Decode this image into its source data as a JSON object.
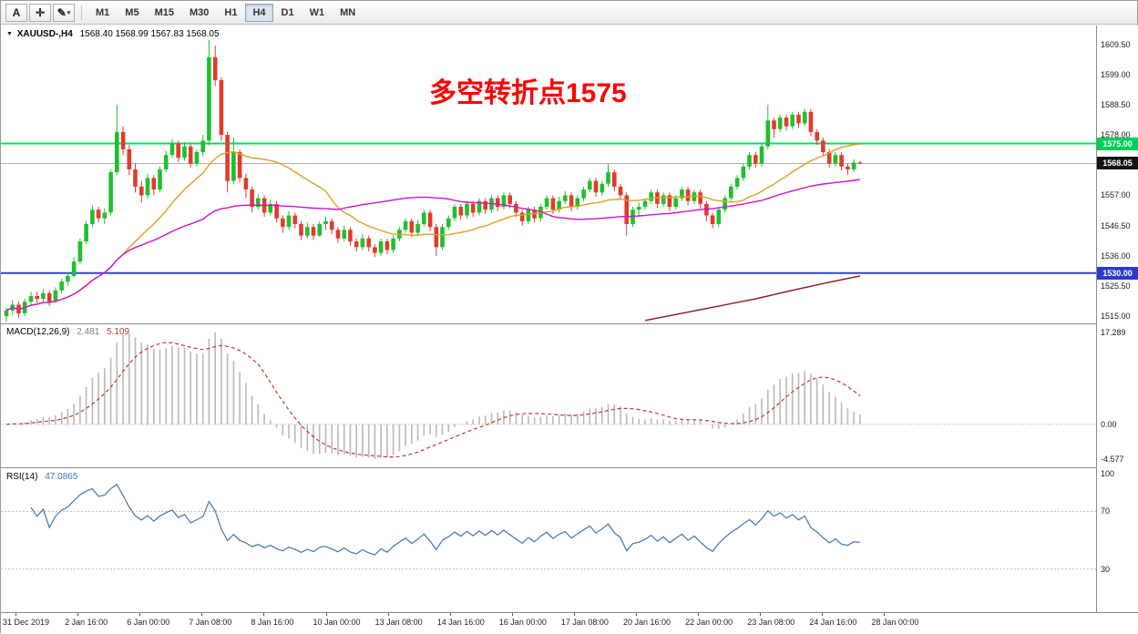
{
  "toolbar": {
    "tools": [
      {
        "id": "text-tool",
        "label": "A"
      },
      {
        "id": "crosshair-tool",
        "label": "✛"
      },
      {
        "id": "draw-tools",
        "label": "✎",
        "caret": "▾"
      }
    ],
    "timeframes": [
      "M1",
      "M5",
      "M15",
      "M30",
      "H1",
      "H4",
      "D1",
      "W1",
      "MN"
    ],
    "active_timeframe": "H4"
  },
  "chart_header": {
    "collapse_icon": "▼",
    "symbol_period": "XAUUSD-,H4",
    "ohlc": "1568.40 1568.99 1567.83 1568.05"
  },
  "annotation": {
    "text": "多空转折点1575",
    "color": "#ff0000"
  },
  "price_axis": {
    "ticks": [
      1609.5,
      1599.0,
      1588.5,
      1578.0,
      1567.5,
      1557.0,
      1546.5,
      1536.0,
      1525.5,
      1515.0
    ],
    "tags": [
      {
        "label": "1575.00",
        "price": 1575.0,
        "bg": "#00cf58",
        "fg": "#ffffff",
        "name": "resistance-price-tag"
      },
      {
        "label": "1568.05",
        "price": 1568.05,
        "bg": "#141414",
        "fg": "#ffffff",
        "name": "current-price-tag"
      },
      {
        "label": "1530.00",
        "price": 1530.0,
        "bg": "#2b3bc8",
        "fg": "#ffffff",
        "name": "support-price-tag"
      }
    ]
  },
  "time_axis": {
    "labels": [
      "31 Dec 2019",
      "2 Jan 16:00",
      "6 Jan 00:00",
      "7 Jan 08:00",
      "8 Jan 16:00",
      "10 Jan 00:00",
      "13 Jan 08:00",
      "14 Jan 16:00",
      "16 Jan 00:00",
      "17 Jan 08:00",
      "20 Jan 16:00",
      "22 Jan 00:00",
      "23 Jan 08:00",
      "24 Jan 16:00",
      "28 Jan 00:00"
    ]
  },
  "chart_data": [
    {
      "id": "price",
      "type": "candlestick",
      "symbol": "XAUUSD-",
      "timeframe": "H4",
      "ohlc_display": {
        "open": 1568.4,
        "high": 1568.99,
        "low": 1567.83,
        "close": 1568.05
      },
      "ylim": [
        1512.5,
        1616.0
      ],
      "up_color": "#1fbf2f",
      "down_color": "#e23a2e",
      "hlines": [
        {
          "price": 1575.0,
          "color": "#00e05f",
          "width": 2,
          "label": "1575.00",
          "note": "bull-bear turning point"
        },
        {
          "price": 1530.0,
          "color": "#3345cc",
          "width": 2,
          "label": "1530.00"
        },
        {
          "price": 1568.05,
          "color": "#b0b0b0",
          "width": 1,
          "label": "1568.05",
          "style": "current"
        }
      ],
      "moving_averages": [
        {
          "period": 20,
          "method": "sma",
          "color": "#dfa023"
        },
        {
          "period": 55,
          "method": "sma",
          "color": "#d012c8"
        }
      ],
      "slow_ma_points": {
        "color": "#8b1515",
        "points": [
          [
            104,
            1513.5
          ],
          [
            110,
            1516
          ],
          [
            116,
            1518.5
          ],
          [
            122,
            1521
          ],
          [
            128,
            1524
          ],
          [
            134,
            1526.8
          ],
          [
            139,
            1529
          ]
        ]
      },
      "candles": [
        [
          1515,
          1518,
          1513,
          1517
        ],
        [
          1517,
          1520.5,
          1515.5,
          1519
        ],
        [
          1519,
          1520,
          1514.5,
          1516
        ],
        [
          1516,
          1521,
          1515,
          1520
        ],
        [
          1520,
          1523.5,
          1519,
          1522
        ],
        [
          1522,
          1523.5,
          1519.5,
          1521
        ],
        [
          1521,
          1524.5,
          1520,
          1523
        ],
        [
          1523,
          1524,
          1518.5,
          1520
        ],
        [
          1520,
          1525,
          1519.5,
          1524
        ],
        [
          1524,
          1528,
          1523,
          1527
        ],
        [
          1527,
          1530,
          1525.5,
          1529
        ],
        [
          1529,
          1535.5,
          1528.5,
          1534
        ],
        [
          1534,
          1542,
          1533,
          1541
        ],
        [
          1541,
          1548,
          1540,
          1547
        ],
        [
          1547,
          1553.5,
          1546,
          1552
        ],
        [
          1552,
          1553,
          1547.5,
          1549
        ],
        [
          1549,
          1552.5,
          1547,
          1551
        ],
        [
          1551,
          1566,
          1550,
          1565
        ],
        [
          1565,
          1588.5,
          1564,
          1579
        ],
        [
          1579,
          1581,
          1571,
          1573
        ],
        [
          1573,
          1574.5,
          1564,
          1566
        ],
        [
          1566,
          1568,
          1558,
          1560
        ],
        [
          1560,
          1562,
          1554.5,
          1557
        ],
        [
          1557,
          1564.5,
          1556,
          1563
        ],
        [
          1563,
          1564,
          1557,
          1559
        ],
        [
          1559,
          1567,
          1558,
          1566
        ],
        [
          1566,
          1572.5,
          1565,
          1571
        ],
        [
          1571,
          1576.5,
          1570,
          1575
        ],
        [
          1575,
          1576,
          1568.5,
          1570
        ],
        [
          1570,
          1575.5,
          1569,
          1574
        ],
        [
          1574,
          1575,
          1566.5,
          1568
        ],
        [
          1568,
          1573,
          1567,
          1572
        ],
        [
          1572,
          1578,
          1570.5,
          1576
        ],
        [
          1576,
          1611,
          1574.5,
          1605
        ],
        [
          1605,
          1609,
          1595,
          1597
        ],
        [
          1597,
          1598,
          1576,
          1578
        ],
        [
          1578,
          1579,
          1558,
          1562
        ],
        [
          1562,
          1577,
          1561,
          1572
        ],
        [
          1572,
          1573,
          1561.5,
          1563
        ],
        [
          1563,
          1564.5,
          1556,
          1559
        ],
        [
          1559,
          1560,
          1551,
          1553
        ],
        [
          1553,
          1557.5,
          1552,
          1556
        ],
        [
          1556,
          1557,
          1549.5,
          1551
        ],
        [
          1551,
          1555.5,
          1550,
          1554
        ],
        [
          1554,
          1555,
          1547.5,
          1549
        ],
        [
          1549,
          1550,
          1544,
          1546
        ],
        [
          1546,
          1551.5,
          1545,
          1550
        ],
        [
          1550,
          1551,
          1545.5,
          1547
        ],
        [
          1547,
          1548,
          1541.5,
          1543
        ],
        [
          1543,
          1547.5,
          1542,
          1546
        ],
        [
          1546,
          1547,
          1541.5,
          1543
        ],
        [
          1543,
          1548,
          1542.5,
          1547
        ],
        [
          1547,
          1549.5,
          1545,
          1548
        ],
        [
          1548,
          1549,
          1543.5,
          1545
        ],
        [
          1545,
          1546,
          1540.5,
          1542
        ],
        [
          1542,
          1546.5,
          1541,
          1545
        ],
        [
          1545,
          1546,
          1539.5,
          1541
        ],
        [
          1541,
          1542,
          1537.5,
          1539
        ],
        [
          1539,
          1543.5,
          1538,
          1542
        ],
        [
          1542,
          1543,
          1537.5,
          1539
        ],
        [
          1539,
          1540,
          1535.5,
          1537
        ],
        [
          1537,
          1542,
          1536,
          1541
        ],
        [
          1541,
          1542,
          1536.5,
          1538
        ],
        [
          1538,
          1543,
          1537,
          1542
        ],
        [
          1542,
          1546,
          1541,
          1545
        ],
        [
          1545,
          1549,
          1544,
          1548
        ],
        [
          1548,
          1549,
          1542.5,
          1544
        ],
        [
          1544,
          1548.5,
          1543,
          1547
        ],
        [
          1547,
          1552,
          1546,
          1551
        ],
        [
          1551,
          1552,
          1544.5,
          1546
        ],
        [
          1546,
          1547,
          1536,
          1539
        ],
        [
          1539,
          1547,
          1538,
          1546
        ],
        [
          1546,
          1550,
          1545,
          1549
        ],
        [
          1549,
          1554,
          1548,
          1553
        ],
        [
          1553,
          1554,
          1548.5,
          1550
        ],
        [
          1550,
          1555,
          1549,
          1554
        ],
        [
          1554,
          1555,
          1549.5,
          1551
        ],
        [
          1551,
          1556,
          1550,
          1555
        ],
        [
          1555,
          1556,
          1550.5,
          1552
        ],
        [
          1552,
          1557,
          1551,
          1556
        ],
        [
          1556,
          1557,
          1551.5,
          1553
        ],
        [
          1553,
          1558,
          1552,
          1557
        ],
        [
          1557,
          1558,
          1552.5,
          1554
        ],
        [
          1554,
          1555,
          1549.5,
          1551
        ],
        [
          1551,
          1552,
          1546.5,
          1548
        ],
        [
          1548,
          1553,
          1547,
          1552
        ],
        [
          1552,
          1553,
          1547.5,
          1549
        ],
        [
          1549,
          1554,
          1548,
          1553
        ],
        [
          1553,
          1557,
          1552,
          1556
        ],
        [
          1556,
          1557,
          1550.5,
          1552
        ],
        [
          1552,
          1556.5,
          1551,
          1555
        ],
        [
          1555,
          1558.5,
          1554,
          1557
        ],
        [
          1557,
          1558,
          1551.5,
          1553
        ],
        [
          1553,
          1557,
          1552,
          1556
        ],
        [
          1556,
          1560,
          1555,
          1559
        ],
        [
          1559,
          1563,
          1558,
          1562
        ],
        [
          1562,
          1563,
          1556.5,
          1558
        ],
        [
          1558,
          1562,
          1557,
          1561
        ],
        [
          1561,
          1568,
          1560,
          1565
        ],
        [
          1565,
          1566,
          1558.5,
          1560
        ],
        [
          1560,
          1561,
          1555.5,
          1557
        ],
        [
          1557,
          1558,
          1543,
          1547
        ],
        [
          1547,
          1553,
          1546,
          1552
        ],
        [
          1552,
          1554.5,
          1550,
          1553
        ],
        [
          1553,
          1556,
          1552,
          1555
        ],
        [
          1555,
          1559,
          1554,
          1558
        ],
        [
          1558,
          1559,
          1552.5,
          1554
        ],
        [
          1554,
          1558,
          1553,
          1557
        ],
        [
          1557,
          1558,
          1551.5,
          1553
        ],
        [
          1553,
          1557,
          1552,
          1556
        ],
        [
          1556,
          1560,
          1555,
          1559
        ],
        [
          1559,
          1560,
          1553.5,
          1555
        ],
        [
          1555,
          1559,
          1554,
          1558
        ],
        [
          1558,
          1559,
          1552.5,
          1554
        ],
        [
          1554,
          1555,
          1548,
          1550
        ],
        [
          1550,
          1551,
          1545.5,
          1547
        ],
        [
          1547,
          1553,
          1546,
          1552
        ],
        [
          1552,
          1557,
          1551,
          1556
        ],
        [
          1556,
          1561,
          1555,
          1560
        ],
        [
          1560,
          1564,
          1559,
          1563
        ],
        [
          1563,
          1568,
          1562,
          1567
        ],
        [
          1567,
          1572,
          1566,
          1571
        ],
        [
          1571,
          1572,
          1566.5,
          1568
        ],
        [
          1568,
          1575,
          1567,
          1574
        ],
        [
          1574,
          1588.5,
          1573,
          1583
        ],
        [
          1583,
          1584,
          1577,
          1580
        ],
        [
          1580,
          1585,
          1579,
          1584
        ],
        [
          1584,
          1585,
          1579.5,
          1581
        ],
        [
          1581,
          1586,
          1580,
          1585
        ],
        [
          1585,
          1586,
          1580.5,
          1582
        ],
        [
          1582,
          1587,
          1581,
          1586
        ],
        [
          1586,
          1587,
          1577.5,
          1579
        ],
        [
          1579,
          1580,
          1574.5,
          1576
        ],
        [
          1576,
          1577,
          1570.5,
          1572
        ],
        [
          1572,
          1573,
          1566.5,
          1568
        ],
        [
          1568,
          1572,
          1567,
          1571
        ],
        [
          1571,
          1572,
          1565.5,
          1567
        ],
        [
          1567,
          1568,
          1564,
          1566
        ],
        [
          1566,
          1569.5,
          1565,
          1568.4
        ],
        [
          1568.4,
          1568.99,
          1567.83,
          1568.05
        ]
      ]
    },
    {
      "id": "macd",
      "type": "macd",
      "label": "MACD(12,26,9)",
      "params": [
        12,
        26,
        9
      ],
      "values": {
        "main": "2.481",
        "signal": "5.109"
      },
      "axis_labels": [
        "17.289",
        "0.00",
        "-4.577"
      ],
      "histogram_color": "#b9b9b9",
      "signal_color": "#c0392b"
    },
    {
      "id": "rsi",
      "type": "rsi",
      "label": "RSI(14)",
      "period": 14,
      "value": "47.0865",
      "axis_labels": [
        "100",
        "70",
        "30"
      ],
      "levels": [
        70,
        30
      ],
      "line_color": "#3f77ad"
    }
  ]
}
